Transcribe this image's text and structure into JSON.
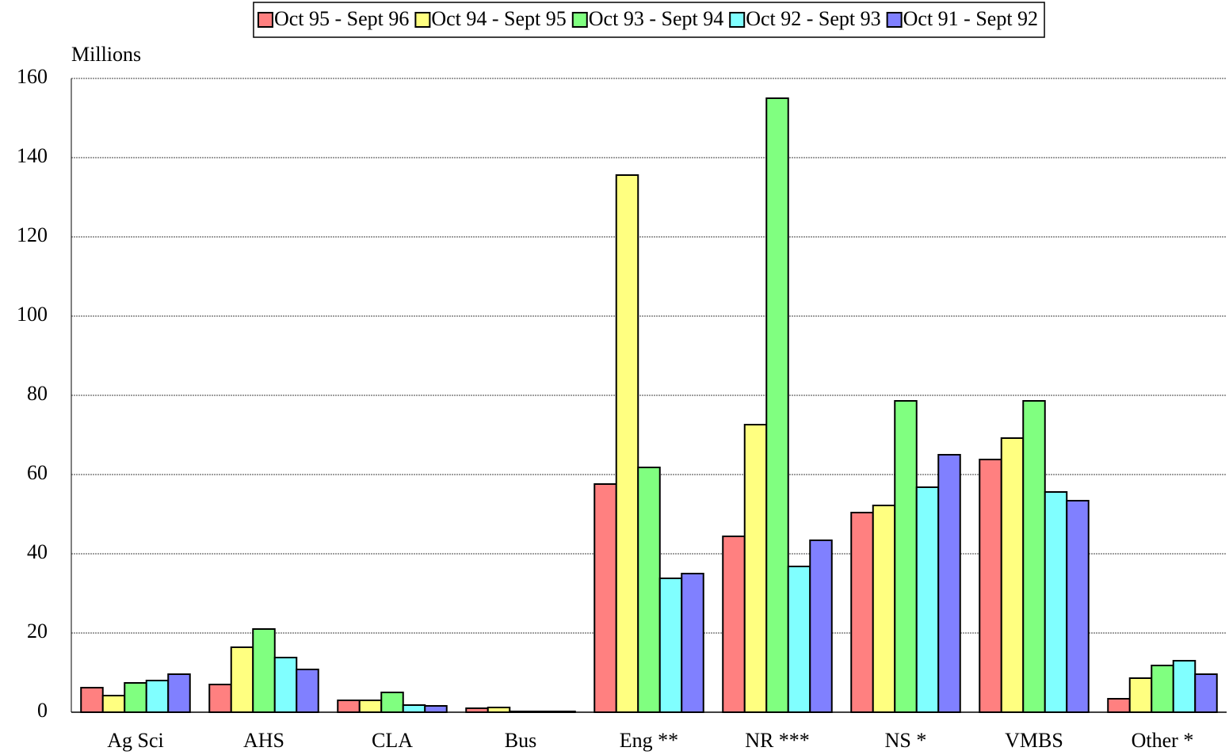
{
  "chart_data": {
    "type": "bar",
    "y_label": "Millions",
    "categories": [
      "Ag Sci",
      "AHS",
      "CLA",
      "Bus",
      "Eng **",
      "NR ***",
      "NS *",
      "VMBS",
      "Other *"
    ],
    "series": [
      {
        "name": "Oct 95 - Sept 96",
        "color": "#ff8080",
        "values": [
          6.2,
          7,
          3,
          1,
          57.6,
          44.4,
          50.4,
          63.8,
          3.4
        ]
      },
      {
        "name": "Oct 94 - Sept 95",
        "color": "#ffff80",
        "values": [
          4.2,
          16.4,
          3,
          1.2,
          135.6,
          72.6,
          52.2,
          69.2,
          8.6
        ]
      },
      {
        "name": "Oct 93 - Sept 94",
        "color": "#80ff80",
        "values": [
          7.4,
          21,
          5,
          0.2,
          61.8,
          155,
          78.6,
          78.6,
          11.8
        ]
      },
      {
        "name": "Oct 92 - Sept 93",
        "color": "#80ffff",
        "values": [
          8,
          13.8,
          1.8,
          0.2,
          33.8,
          36.8,
          56.8,
          55.6,
          13
        ]
      },
      {
        "name": "Oct 91 - Sept 92",
        "color": "#8080ff",
        "values": [
          9.6,
          10.8,
          1.6,
          0.2,
          35,
          43.4,
          65,
          53.4,
          9.6
        ]
      }
    ],
    "ylim": [
      0,
      160
    ],
    "yticks": [
      0,
      20,
      40,
      60,
      80,
      100,
      120,
      140,
      160
    ],
    "grid": true,
    "legend": "top"
  }
}
